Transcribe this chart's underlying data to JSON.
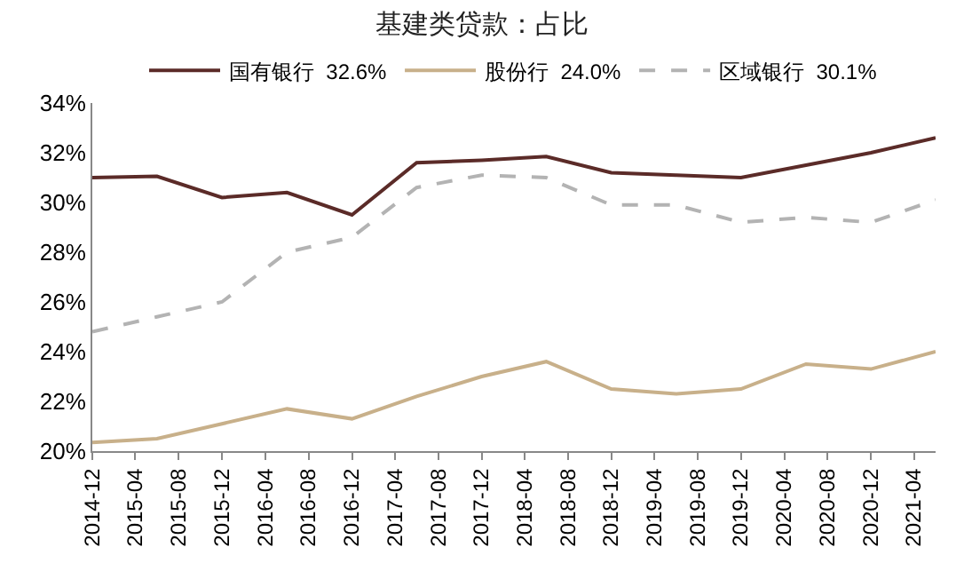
{
  "chart_data": {
    "type": "line",
    "title": "基建类贷款：占比",
    "x": [
      "2014-12",
      "2015-06",
      "2015-12",
      "2016-06",
      "2016-12",
      "2017-06",
      "2017-12",
      "2018-06",
      "2018-12",
      "2019-06",
      "2019-12",
      "2020-06",
      "2020-12",
      "2021-06"
    ],
    "series": [
      {
        "name": "国有银行  32.6%",
        "color": "#5b2b28",
        "line_style": "solid",
        "values": [
          31.0,
          31.05,
          30.2,
          30.4,
          29.5,
          31.6,
          31.7,
          31.85,
          31.2,
          31.1,
          31.0,
          31.5,
          32.0,
          32.6
        ]
      },
      {
        "name": "股份行  24.0%",
        "color": "#c8b08a",
        "line_style": "solid",
        "values": [
          20.35,
          20.5,
          21.1,
          21.7,
          21.3,
          22.2,
          23.0,
          23.6,
          22.5,
          22.3,
          22.5,
          23.5,
          23.3,
          24.0
        ]
      },
      {
        "name": "区域银行  30.1%",
        "color": "#b3b3b3",
        "line_style": "dashed",
        "values": [
          24.8,
          25.4,
          26.0,
          28.0,
          28.6,
          30.6,
          31.1,
          31.0,
          29.9,
          29.9,
          29.2,
          29.4,
          29.2,
          30.1
        ]
      }
    ],
    "xlim": [
      "2014-12",
      "2021-06"
    ],
    "xticks": [
      "2014-12",
      "2015-04",
      "2015-08",
      "2015-12",
      "2016-04",
      "2016-08",
      "2016-12",
      "2017-04",
      "2017-08",
      "2017-12",
      "2018-04",
      "2018-08",
      "2018-12",
      "2019-04",
      "2019-08",
      "2019-12",
      "2020-04",
      "2020-08",
      "2020-12",
      "2021-04"
    ],
    "ylim": [
      20,
      34
    ],
    "yticks": [
      {
        "value": 20,
        "label": "20%"
      },
      {
        "value": 22,
        "label": "22%"
      },
      {
        "value": 24,
        "label": "24%"
      },
      {
        "value": 26,
        "label": "26%"
      },
      {
        "value": 28,
        "label": "28%"
      },
      {
        "value": 30,
        "label": "30%"
      },
      {
        "value": 32,
        "label": "32%"
      },
      {
        "value": 34,
        "label": "34%"
      }
    ],
    "grid": false,
    "legend": "top",
    "marker": "none"
  }
}
